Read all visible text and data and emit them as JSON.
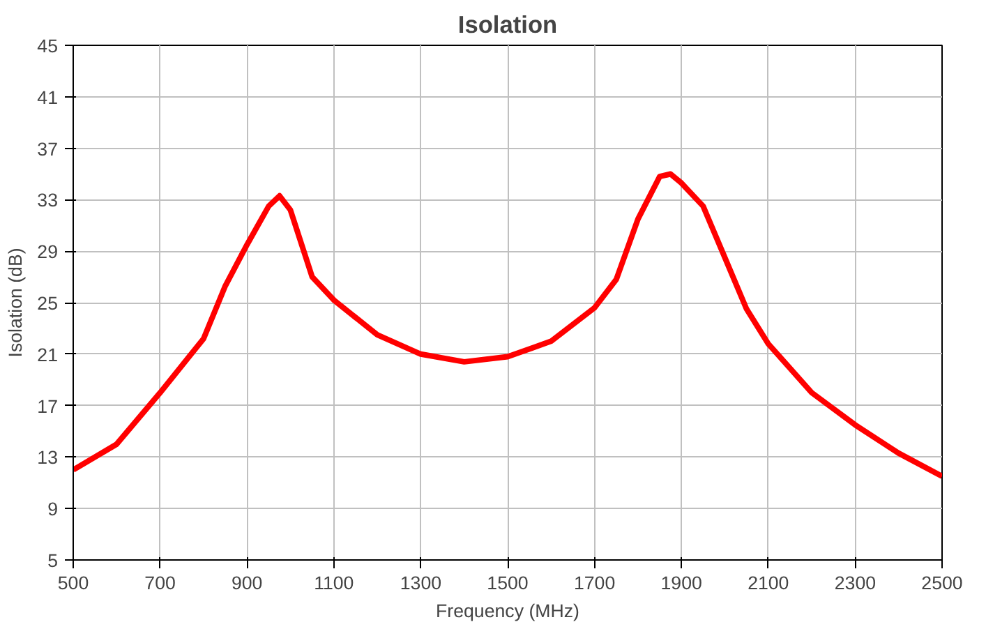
{
  "chart_data": {
    "type": "line",
    "title": "Isolation",
    "xlabel": "Frequency (MHz)",
    "ylabel": "Isolation (dB)",
    "x": [
      500,
      600,
      700,
      800,
      850,
      900,
      950,
      975,
      1000,
      1050,
      1100,
      1200,
      1300,
      1400,
      1500,
      1600,
      1700,
      1750,
      1800,
      1850,
      1875,
      1900,
      1950,
      2000,
      2050,
      2100,
      2200,
      2300,
      2400,
      2500
    ],
    "series": [
      {
        "color": "#ff0000",
        "values": [
          12.0,
          14.0,
          18.0,
          22.2,
          26.3,
          29.5,
          32.5,
          33.3,
          32.2,
          27.0,
          25.2,
          22.5,
          21.0,
          20.4,
          20.8,
          22.0,
          24.6,
          26.8,
          31.5,
          34.8,
          35.0,
          34.3,
          32.5,
          28.5,
          24.5,
          21.8,
          18.0,
          15.5,
          13.3,
          11.5
        ]
      }
    ],
    "xlim": [
      500,
      2500
    ],
    "xticks": [
      500,
      700,
      900,
      1100,
      1300,
      1500,
      1700,
      1900,
      2100,
      2300,
      2500
    ],
    "ylim": [
      5,
      45
    ],
    "yticks": [
      5,
      9,
      13,
      17,
      21,
      25,
      29,
      33,
      37,
      41,
      45
    ],
    "grid": true,
    "line_style": "solid",
    "marker": "none"
  }
}
